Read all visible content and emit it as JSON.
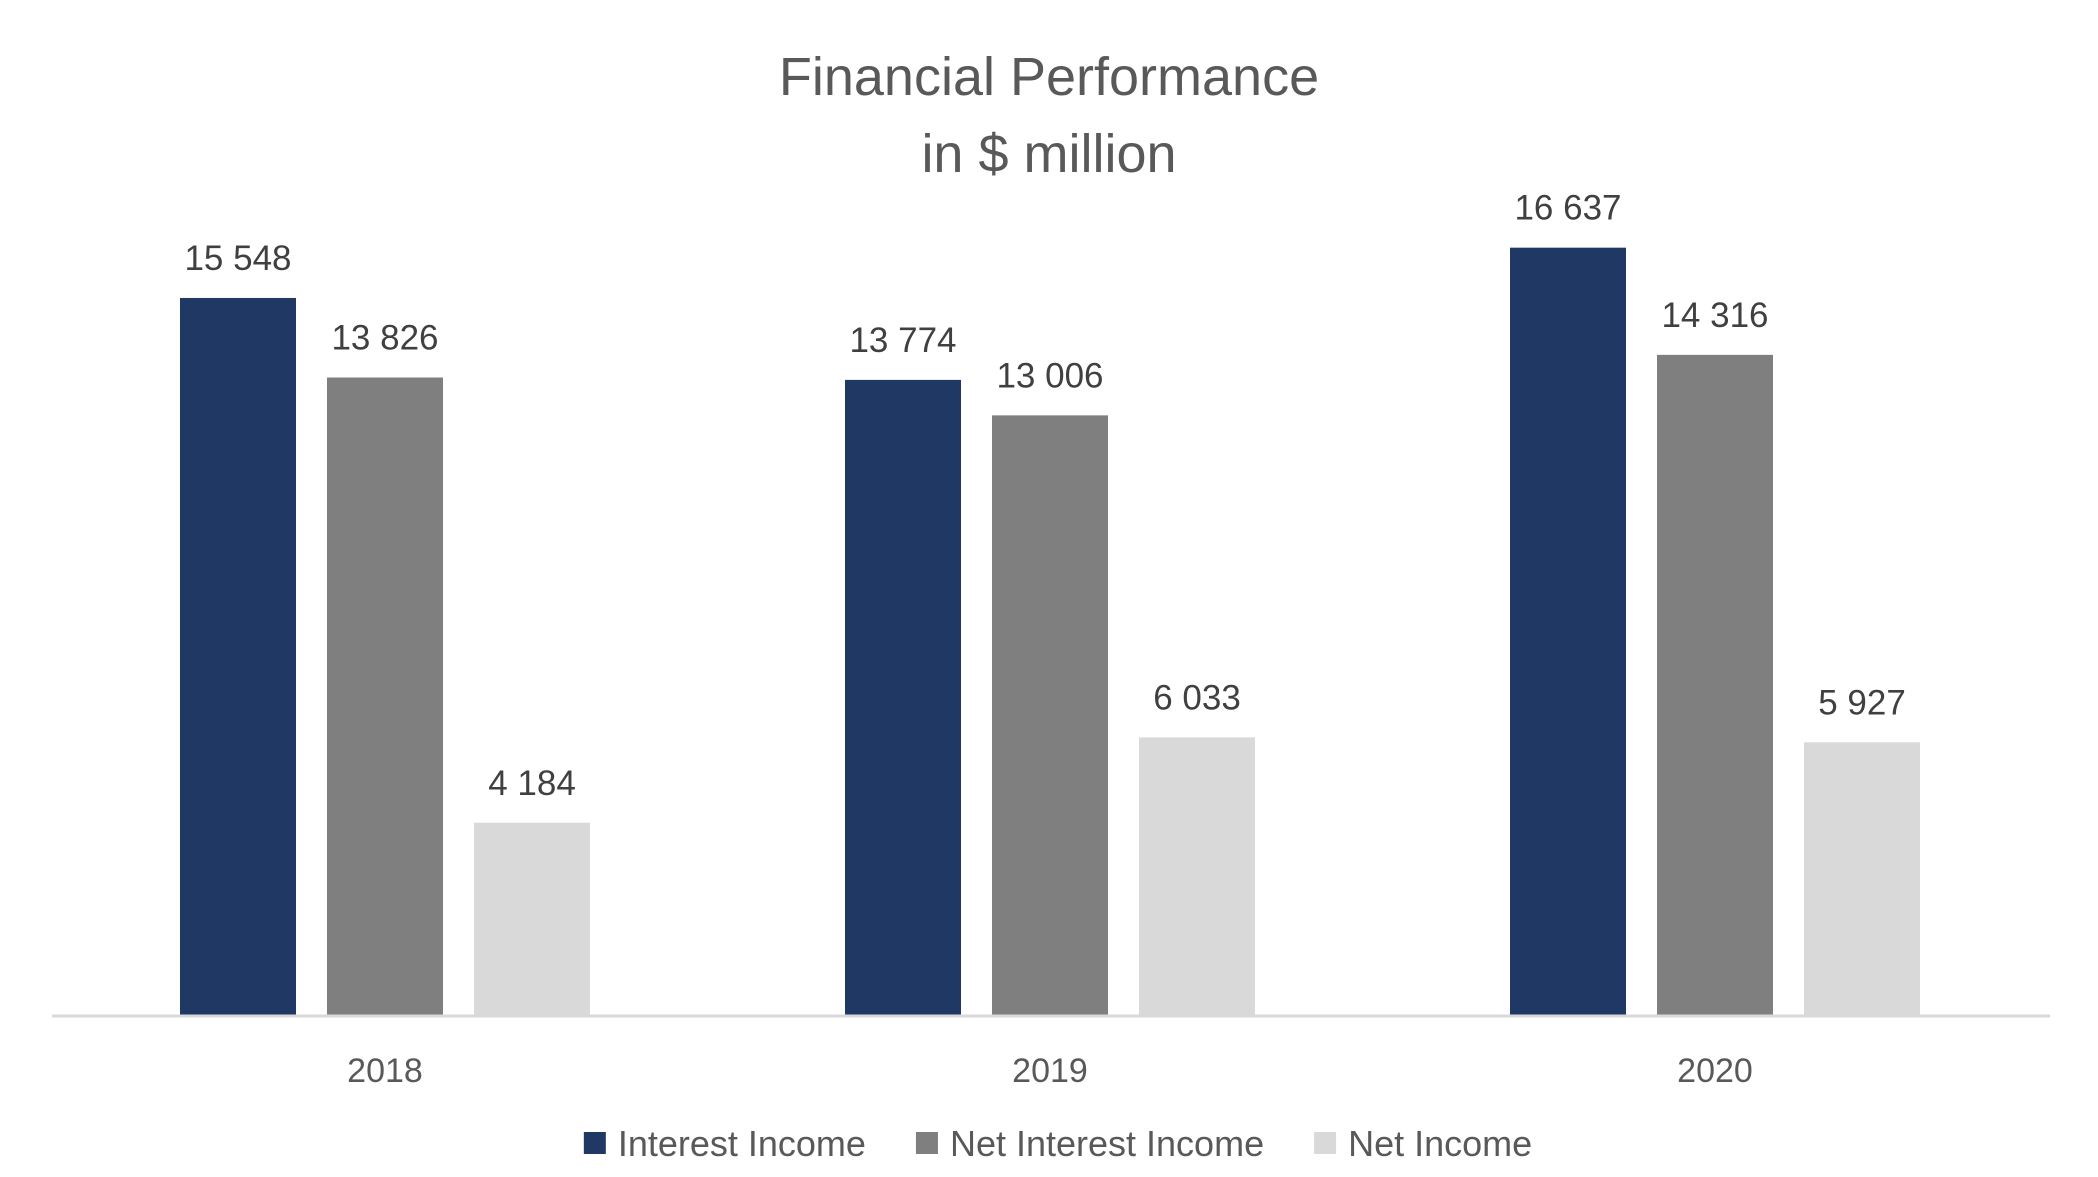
{
  "chart_data": {
    "type": "bar",
    "title": [
      "Financial Performance",
      "in $ million"
    ],
    "xlabel": "",
    "ylabel": "",
    "categories": [
      "2018",
      "2019",
      "2020"
    ],
    "series": [
      {
        "name": "Interest Income",
        "color": "#203864",
        "values": [
          15548,
          13774,
          16637
        ],
        "labels": [
          "15 548",
          "13 774",
          "16 637"
        ]
      },
      {
        "name": "Net Interest Income",
        "color": "#7f7f7f",
        "values": [
          13826,
          13006,
          14316
        ],
        "labels": [
          "13 826",
          "13 006",
          "14 316"
        ]
      },
      {
        "name": "Net Income",
        "color": "#d9d9d9",
        "values": [
          4184,
          6033,
          5927
        ],
        "labels": [
          "4 184",
          "6 033",
          "5 927"
        ]
      }
    ],
    "ylim": [
      0,
      22000
    ],
    "grid": false,
    "legend": "bottom",
    "axis_color": "#d9d9d9"
  }
}
